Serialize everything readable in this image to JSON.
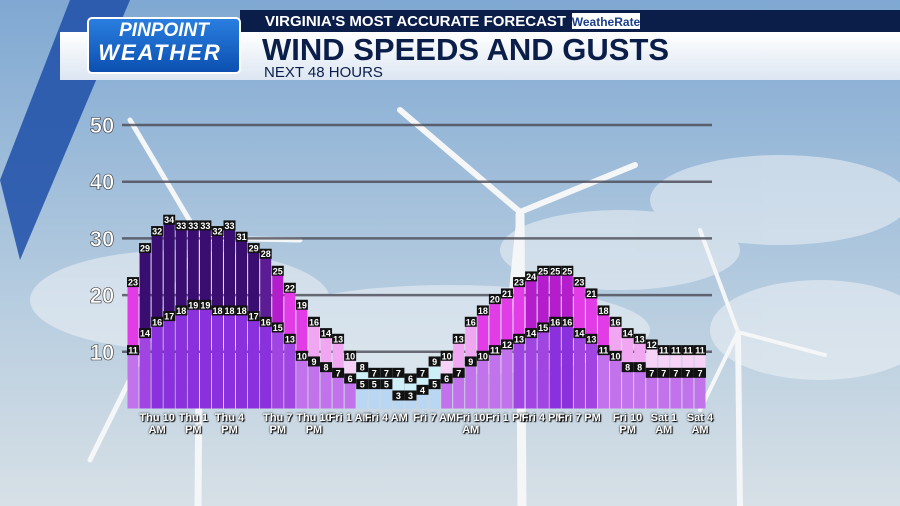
{
  "header": {
    "brand_top": "PINPOINT",
    "brand_bottom": "WEATHER",
    "tagline": "VIRGINIA'S MOST ACCURATE FORECAST",
    "sponsor": "WeatheRate"
  },
  "chart_data": {
    "type": "bar",
    "title": "WIND SPEEDS AND GUSTS",
    "subtitle": "NEXT 48 HOURS",
    "categories": [
      null,
      null,
      "Thu 10 AM",
      null,
      null,
      "Thu 1 PM",
      null,
      null,
      "Thu 4 PM",
      null,
      null,
      null,
      "Thu 7 PM",
      null,
      null,
      "Thu 10 PM",
      null,
      null,
      "Fri 1 AM",
      null,
      null,
      "Fri 4 AM",
      null,
      null,
      null,
      "Fri 7 AM",
      null,
      null,
      "Fri 10 AM",
      null,
      null,
      "Fri 1 PM",
      null,
      null,
      "Fri 4 PM",
      null,
      null,
      "Fri 7 PM",
      null,
      null,
      null,
      "Fri 10 PM",
      null,
      null,
      "Sat 1 AM",
      null,
      null,
      "Sat 4 AM"
    ],
    "series": [
      {
        "values": [
          23,
          29,
          32,
          34,
          33,
          33,
          33,
          32,
          33,
          31,
          29,
          28,
          25,
          22,
          19,
          16,
          14,
          13,
          10,
          8,
          7,
          7,
          7,
          6,
          7,
          9,
          10,
          13,
          16,
          18,
          20,
          21,
          23,
          24,
          25,
          25,
          25,
          23,
          21,
          18,
          16,
          14,
          13,
          12,
          11,
          11,
          11,
          11
        ],
        "color_steps": [
          {
            "from": 0,
            "color": "#cdeff7"
          },
          {
            "from": 10,
            "color": "#f6d2f6"
          },
          {
            "from": 13,
            "color": "#f0a6f0"
          },
          {
            "from": 18,
            "color": "#e23ce6"
          },
          {
            "from": 24,
            "color": "#b41ccc"
          },
          {
            "from": 28,
            "color": "#5c1c94"
          },
          {
            "from": 29,
            "color": "#3a0e70"
          }
        ]
      },
      {
        "values": [
          11,
          14,
          16,
          17,
          18,
          19,
          19,
          18,
          18,
          18,
          17,
          16,
          15,
          13,
          10,
          9,
          8,
          7,
          6,
          5,
          5,
          5,
          3,
          3,
          4,
          5,
          6,
          7,
          9,
          10,
          11,
          12,
          13,
          14,
          15,
          16,
          16,
          14,
          13,
          11,
          10,
          8,
          8,
          7,
          7,
          7,
          7,
          7
        ],
        "color_steps": [
          {
            "from": 0,
            "color": "#b9d6f2"
          },
          {
            "from": 6,
            "color": "#c272ea"
          },
          {
            "from": 13,
            "color": "#a044e2"
          },
          {
            "from": 16,
            "color": "#8a30dc"
          }
        ]
      }
    ],
    "ylim": [
      0,
      50
    ],
    "yticks": [
      10,
      20,
      30,
      40,
      50
    ],
    "grid": true
  }
}
